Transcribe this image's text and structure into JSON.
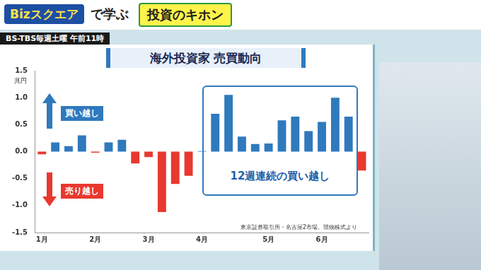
{
  "header": {
    "program": "Bizスクエア",
    "program_suffix": "で学ぶ",
    "topic": "投資のキホン",
    "broadcast": "BS-TBS毎週土曜 午前11時"
  },
  "chart_data": {
    "type": "bar",
    "title": "海外投資家 売買動向",
    "y_unit": "兆円",
    "categories": [
      "1月",
      null,
      null,
      null,
      "2月",
      null,
      null,
      null,
      "3月",
      null,
      null,
      null,
      "4月",
      null,
      null,
      null,
      null,
      "5月",
      null,
      null,
      null,
      "6月",
      null,
      null,
      null
    ],
    "values": [
      -0.05,
      0.17,
      0.1,
      0.3,
      -0.02,
      0.17,
      0.22,
      -0.22,
      -0.1,
      -1.12,
      -0.6,
      -0.45,
      0.01,
      0.7,
      1.05,
      0.28,
      0.14,
      0.15,
      0.58,
      0.65,
      0.38,
      0.55,
      1.0,
      0.65,
      -0.35
    ],
    "colors": [
      "#e8382f",
      "#2f79bd",
      "#2f79bd",
      "#2f79bd",
      "#e8382f",
      "#2f79bd",
      "#2f79bd",
      "#e8382f",
      "#e8382f",
      "#e8382f",
      "#e8382f",
      "#e8382f",
      "#2f79bd",
      "#2f79bd",
      "#2f79bd",
      "#2f79bd",
      "#2f79bd",
      "#2f79bd",
      "#2f79bd",
      "#2f79bd",
      "#2f79bd",
      "#2f79bd",
      "#2f79bd",
      "#2f79bd",
      "#e8382f"
    ],
    "ylim": [
      -1.5,
      1.5
    ],
    "yticks": [
      1.5,
      {
        "value": 1,
        "label": "1.0"
      },
      0.5,
      {
        "value": 0,
        "label": "0.0"
      },
      -0.5,
      {
        "value": -1,
        "label": "-1.0"
      },
      -1.5
    ],
    "grid": false,
    "annotations": {
      "buy": "買い越し",
      "sell": "売り越し",
      "highlight": "12週連続の買い越し",
      "source": "東京証券取引所・名古屋2市場、現物株式より"
    }
  }
}
